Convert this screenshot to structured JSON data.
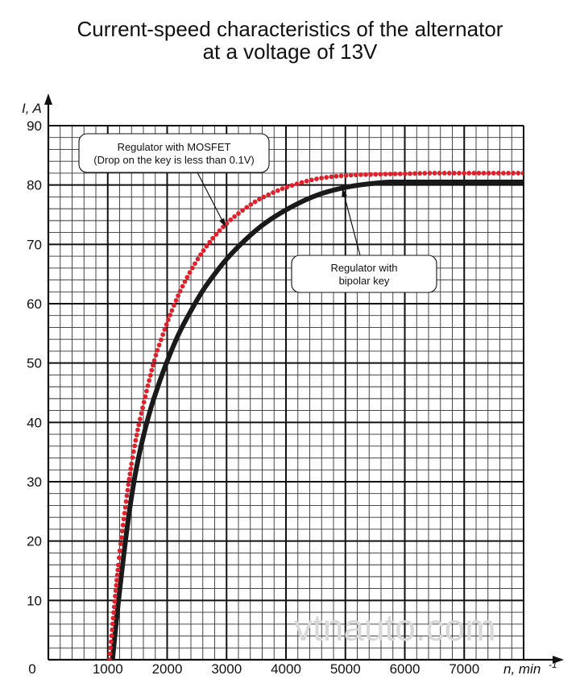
{
  "chart_data": {
    "type": "line",
    "title_lines": [
      "Current-speed characteristics of the alternator",
      "at a voltage of 13V"
    ],
    "ylabel": "I, A",
    "xlabel_main": "n, min",
    "xlabel_sup": "-1",
    "origin_label": "0",
    "xlim": [
      0,
      8000
    ],
    "ylim": [
      0,
      90
    ],
    "x_ticks": [
      "1000",
      "2000",
      "3000",
      "4000",
      "5000",
      "6000",
      "7000"
    ],
    "y_ticks": [
      "10",
      "20",
      "30",
      "40",
      "50",
      "60",
      "70",
      "80",
      "90"
    ],
    "grid": true,
    "series": [
      {
        "name": "Regulator with MOSFET (Drop on the key is less than 0.1V)",
        "style": "dotted",
        "color": "#e0202a",
        "x": [
          1030,
          1100,
          1200,
          1300,
          1400,
          1500,
          1600,
          1700,
          1800,
          1900,
          2000,
          2200,
          2400,
          2600,
          2800,
          3000,
          3200,
          3500,
          3800,
          4000,
          4500,
          5000,
          5500,
          6000,
          6500,
          7000,
          7500,
          8000
        ],
        "values": [
          0,
          8,
          18,
          26,
          33,
          38.5,
          43,
          47.2,
          51,
          54,
          56.8,
          61.7,
          65.6,
          68.8,
          71.4,
          73.5,
          75.2,
          77.3,
          78.8,
          79.6,
          81.0,
          81.6,
          81.8,
          81.9,
          82.0,
          82.0,
          82.0,
          82.0
        ]
      },
      {
        "name": "Regulator with bipolar key",
        "style": "solid",
        "color": "#1a1a1a",
        "x": [
          1080,
          1150,
          1250,
          1350,
          1450,
          1550,
          1700,
          1850,
          2000,
          2200,
          2400,
          2600,
          2800,
          3000,
          3300,
          3600,
          4000,
          4500,
          5000,
          5500,
          5800,
          6000,
          6500,
          7000,
          7500,
          8000
        ],
        "values": [
          0,
          7,
          16,
          24,
          30.5,
          35.5,
          41.5,
          46.2,
          50.3,
          55,
          58.8,
          62.2,
          65,
          67.5,
          70.6,
          73.2,
          75.8,
          78.2,
          79.6,
          80.3,
          80.5,
          80.5,
          80.5,
          80.5,
          80.5,
          80.5
        ]
      }
    ],
    "annotations": [
      {
        "lines": [
          "Regulator with MOSFET",
          "(Drop on the key is less than 0.1V)"
        ],
        "target_x": 2980,
        "target_y": 73
      },
      {
        "lines": [
          "Regulator with",
          "bipolar key"
        ],
        "target_x": 4950,
        "target_y": 79.4
      }
    ]
  },
  "watermark": "vtnauto.com"
}
